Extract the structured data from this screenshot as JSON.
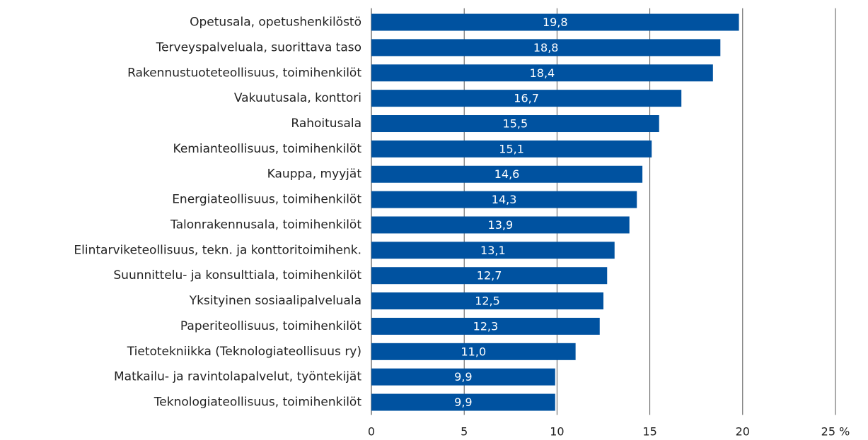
{
  "chart_data": {
    "type": "bar",
    "orientation": "horizontal",
    "color": "#0052a0",
    "categories": [
      "Opetusala, opetushenkilöstö",
      "Terveyspalveluala, suorittava taso",
      "Rakennustuoteteollisuus, toimihenkilöt",
      "Vakuutusala, konttori",
      "Rahoitusala",
      "Kemianteollisuus, toimihenkilöt",
      "Kauppa, myyjät",
      "Energiateollisuus, toimihenkilöt",
      "Talonrakennusala, toimihenkilöt",
      "Elintarviketeollisuus, tekn. ja konttoritoimihenk.",
      "Suunnittelu- ja konsulttiala, toimihenkilöt",
      "Yksityinen sosiaalipalveluala",
      "Paperiteollisuus, toimihenkilöt",
      "Tietotekniikka (Teknologiateollisuus ry)",
      "Matkailu- ja ravintolapalvelut, työntekijät",
      "Teknologiateollisuus, toimihenkilöt"
    ],
    "values": [
      19.8,
      18.8,
      18.4,
      16.7,
      15.5,
      15.1,
      14.6,
      14.3,
      13.9,
      13.1,
      12.7,
      12.5,
      12.3,
      11.0,
      9.9,
      9.9
    ],
    "value_labels": [
      "19,8",
      "18,8",
      "18,4",
      "16,7",
      "15,5",
      "15,1",
      "14,6",
      "14,3",
      "13,9",
      "13,1",
      "12,7",
      "12,5",
      "12,3",
      "11,0",
      "9,9",
      "9,9"
    ],
    "xlim": [
      0,
      25
    ],
    "xticks": [
      0,
      5,
      10,
      15,
      20,
      {
        "value": 25,
        "label": "25 %"
      }
    ],
    "grid": true
  }
}
